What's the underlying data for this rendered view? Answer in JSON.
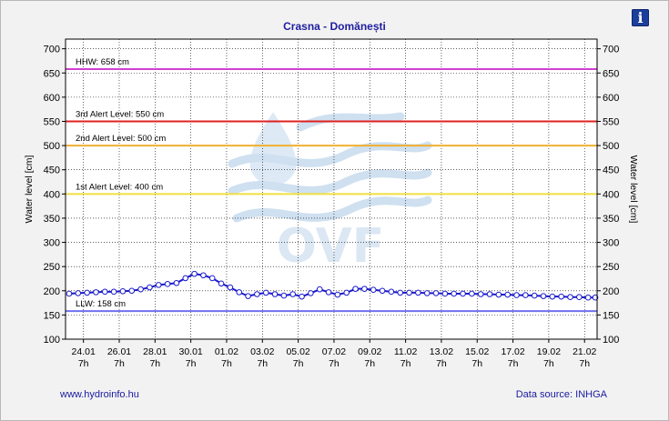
{
  "page": {
    "info_icon": "info-icon",
    "info_glyph": "i",
    "link_text": "www.hydroinfo.hu",
    "source_text": "Data source: INHGA",
    "watermark_text": "OVF"
  },
  "chart_data": {
    "type": "line",
    "title": "Crasna - Domănești",
    "ylabel": "Water level [cm]",
    "ylabel_right": "Water level [cm]",
    "xlabel": "",
    "ylim": [
      100,
      720
    ],
    "yticks": [
      100,
      150,
      200,
      250,
      300,
      350,
      400,
      450,
      500,
      550,
      600,
      650,
      700
    ],
    "xlim": [
      0,
      29.7
    ],
    "xtick_labels": [
      {
        "day": 1,
        "date": "24.01",
        "hour": "7h"
      },
      {
        "day": 3,
        "date": "26.01",
        "hour": "7h"
      },
      {
        "day": 5,
        "date": "28.01",
        "hour": "7h"
      },
      {
        "day": 7,
        "date": "30.01",
        "hour": "7h"
      },
      {
        "day": 9,
        "date": "01.02",
        "hour": "7h"
      },
      {
        "day": 11,
        "date": "03.02",
        "hour": "7h"
      },
      {
        "day": 13,
        "date": "05.02",
        "hour": "7h"
      },
      {
        "day": 15,
        "date": "07.02",
        "hour": "7h"
      },
      {
        "day": 17,
        "date": "09.02",
        "hour": "7h"
      },
      {
        "day": 19,
        "date": "11.02",
        "hour": "7h"
      },
      {
        "day": 21,
        "date": "13.02",
        "hour": "7h"
      },
      {
        "day": 23,
        "date": "15.02",
        "hour": "7h"
      },
      {
        "day": 25,
        "date": "17.02",
        "hour": "7h"
      },
      {
        "day": 27,
        "date": "19.02",
        "hour": "7h"
      },
      {
        "day": 29,
        "date": "21.02",
        "hour": "7h"
      }
    ],
    "grid": true,
    "thresholds": [
      {
        "label": "HHW: 658 cm",
        "value": 658,
        "color": "#d040d0"
      },
      {
        "label": "3rd Alert Level: 550 cm",
        "value": 550,
        "color": "#e02020"
      },
      {
        "label": "2nd Alert Level: 500 cm",
        "value": 500,
        "color": "#f0b030"
      },
      {
        "label": "1st Alert Level: 400 cm",
        "value": 400,
        "color": "#f0e040"
      },
      {
        "label": "LLW: 158 cm",
        "value": 158,
        "color": "#7070f0"
      }
    ],
    "series": [
      {
        "color": "#1a1acc",
        "x": [
          0.2,
          0.7,
          1.2,
          1.7,
          2.2,
          2.7,
          3.2,
          3.7,
          4.2,
          4.7,
          5.2,
          5.7,
          6.2,
          6.7,
          7.2,
          7.7,
          8.2,
          8.7,
          9.2,
          9.7,
          10.2,
          10.7,
          11.2,
          11.7,
          12.2,
          12.7,
          13.2,
          13.7,
          14.2,
          14.7,
          15.2,
          15.7,
          16.2,
          16.7,
          17.2,
          17.7,
          18.2,
          18.7,
          19.2,
          19.7,
          20.2,
          20.7,
          21.2,
          21.7,
          22.2,
          22.7,
          23.2,
          23.7,
          24.2,
          24.7,
          25.2,
          25.7,
          26.2,
          26.7,
          27.2,
          27.7,
          28.2,
          28.7,
          29.2,
          29.6
        ],
        "values": [
          194,
          195,
          196,
          197,
          198,
          198,
          199,
          200,
          203,
          207,
          212,
          214,
          216,
          226,
          235,
          232,
          226,
          215,
          207,
          197,
          189,
          193,
          196,
          193,
          190,
          193,
          188,
          195,
          203,
          197,
          192,
          196,
          204,
          204,
          202,
          200,
          198,
          196,
          196,
          196,
          195,
          195,
          194,
          194,
          194,
          194,
          193,
          193,
          192,
          192,
          191,
          191,
          190,
          189,
          188,
          188,
          187,
          187,
          186,
          186
        ]
      }
    ]
  }
}
